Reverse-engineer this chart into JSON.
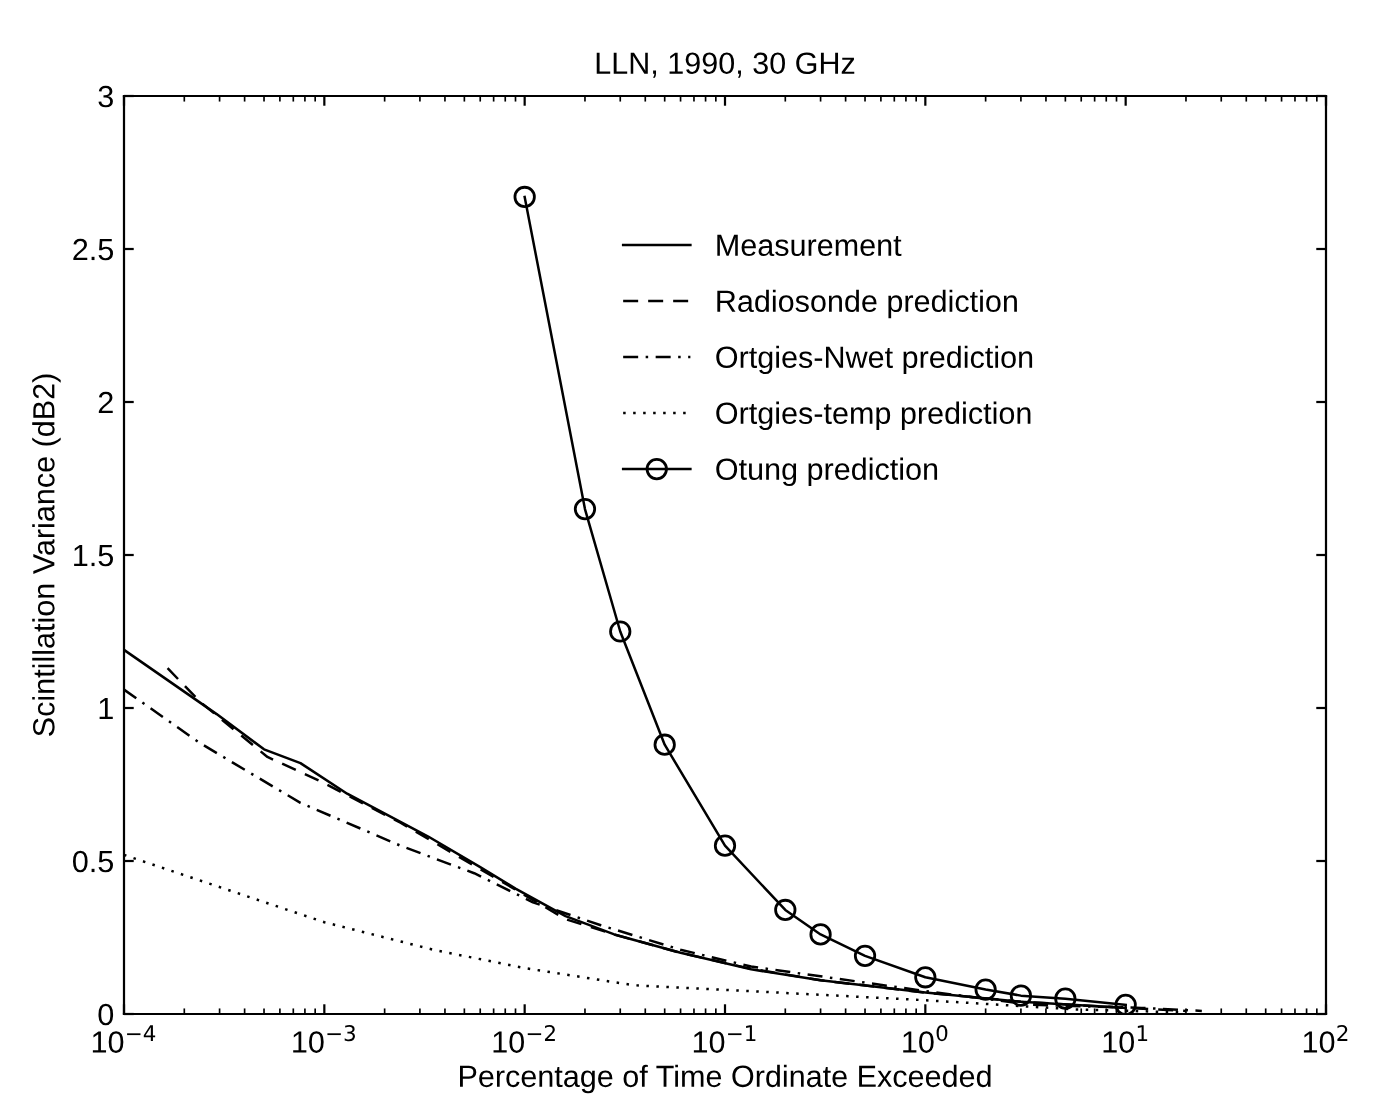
{
  "chart_data": {
    "type": "line",
    "title": "LLN, 1990, 30 GHz",
    "xlabel": "Percentage of Time Ordinate Exceeded",
    "ylabel": "Scintillation Variance (dB2)",
    "log": "x",
    "xlim": [
      0.0001,
      100
    ],
    "xticks": [
      {
        "value": 0.0001,
        "label": "10$^{−4}$"
      },
      {
        "value": 0.001,
        "label": "10$^{−3}$"
      },
      {
        "value": 0.01,
        "label": "10$^{−2}$"
      },
      {
        "value": 0.1,
        "label": "10$^{−1}$"
      },
      {
        "value": 1,
        "label": "10$^{0}$"
      },
      {
        "value": 10,
        "label": "10$^{1}$"
      },
      {
        "value": 100,
        "label": "10$^{2}$"
      }
    ],
    "ylim": [
      0,
      3
    ],
    "yticks": [
      0,
      0.5,
      1,
      1.5,
      2,
      2.5,
      3
    ],
    "grid": false,
    "legend": "top right",
    "series": [
      {
        "name": "Measurement",
        "color": "#000000",
        "line_style": "solid",
        "marker": "none",
        "x": [
          0.0001,
          0.00029,
          0.0005,
          0.00076,
          0.0013,
          0.0033,
          0.006,
          0.009,
          0.016,
          0.028,
          0.06,
          0.135,
          0.3,
          1,
          3,
          10
        ],
        "values": [
          1.19,
          0.98,
          0.865,
          0.82,
          0.72,
          0.58,
          0.48,
          0.41,
          0.32,
          0.26,
          0.2,
          0.146,
          0.11,
          0.07,
          0.04,
          0.02
        ]
      },
      {
        "name": "Radiosonde prediction",
        "color": "#000000",
        "line_style": "dashed",
        "marker": "none",
        "x": [
          0.000165,
          0.00024,
          0.00052,
          0.00096,
          0.0024,
          0.0048,
          0.0083,
          0.016,
          0.028,
          0.06,
          0.13,
          0.3,
          1,
          3,
          10,
          20
        ],
        "values": [
          1.13,
          1.02,
          0.84,
          0.76,
          0.625,
          0.51,
          0.42,
          0.31,
          0.26,
          0.2,
          0.15,
          0.11,
          0.07,
          0.04,
          0.02,
          0.01
        ]
      },
      {
        "name": "Ortgies-Nwet prediction",
        "color": "#000000",
        "line_style": "dashdot",
        "marker": "none",
        "x": [
          0.0001,
          0.00024,
          0.00076,
          0.0024,
          0.0056,
          0.011,
          0.024,
          0.06,
          0.135,
          1,
          3.4,
          12,
          24
        ],
        "values": [
          1.06,
          0.885,
          0.69,
          0.55,
          0.46,
          0.365,
          0.29,
          0.21,
          0.155,
          0.075,
          0.03,
          0.02,
          0.01
        ]
      },
      {
        "name": "Ortgies-temp prediction",
        "color": "#000000",
        "line_style": "dotted",
        "marker": "none",
        "x": [
          0.0001,
          0.00035,
          0.001,
          0.0035,
          0.01,
          0.035,
          0.15,
          1,
          5.6,
          20
        ],
        "values": [
          0.52,
          0.4,
          0.3,
          0.21,
          0.15,
          0.094,
          0.073,
          0.045,
          0.015,
          0.005
        ]
      },
      {
        "name": "Otung prediction",
        "color": "#000000",
        "line_style": "solid",
        "marker": "circle",
        "x": [
          0.01,
          0.02,
          0.03,
          0.05,
          0.1,
          0.2,
          0.3,
          0.5,
          1,
          2,
          3,
          5,
          10
        ],
        "values": [
          2.67,
          1.65,
          1.25,
          0.88,
          0.55,
          0.34,
          0.26,
          0.19,
          0.12,
          0.08,
          0.06,
          0.05,
          0.03
        ]
      }
    ]
  }
}
